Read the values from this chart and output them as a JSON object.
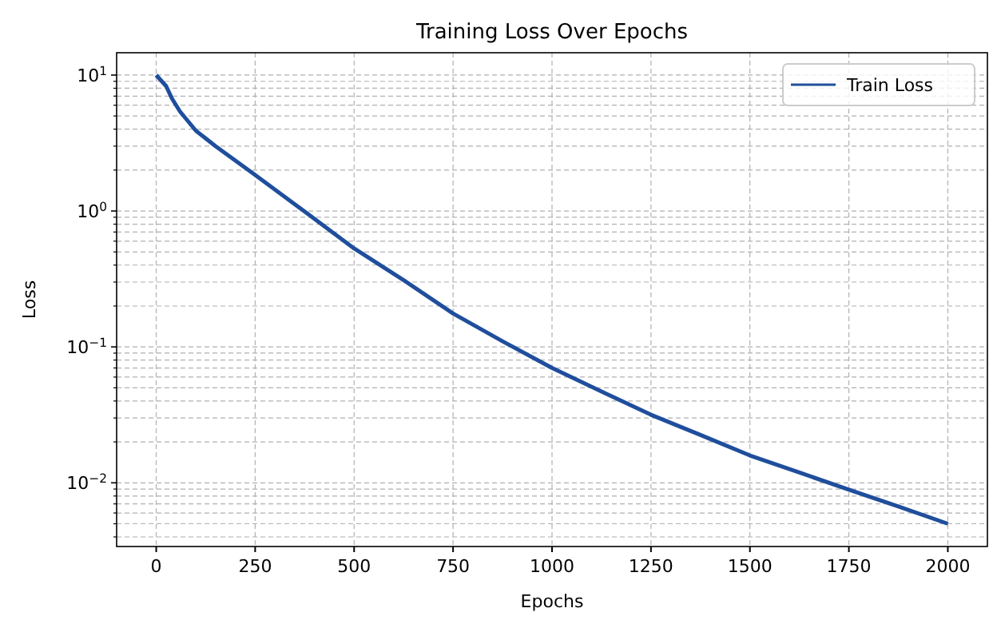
{
  "chart_data": {
    "type": "line",
    "title": "Training Loss Over Epochs",
    "xlabel": "Epochs",
    "ylabel": "Loss",
    "log": "y",
    "grid": true,
    "legend": "top right",
    "line_style": "solid",
    "xlim": [
      -100,
      2100
    ],
    "xticks": [
      0,
      250,
      500,
      750,
      1000,
      1250,
      1500,
      1750,
      2000
    ],
    "ylim": [
      0.0034,
      14.6
    ],
    "yticks": [
      {
        "value": 0.004,
        "label": null
      },
      {
        "value": 0.005,
        "label": null
      },
      {
        "value": 0.006,
        "label": null
      },
      {
        "value": 0.007,
        "label": null
      },
      {
        "value": 0.008,
        "label": null
      },
      {
        "value": 0.009,
        "label": null
      },
      {
        "value": 0.01,
        "label": "10$^{−2}$"
      },
      {
        "value": 0.02,
        "label": null
      },
      {
        "value": 0.03,
        "label": null
      },
      {
        "value": 0.04,
        "label": null
      },
      {
        "value": 0.05,
        "label": null
      },
      {
        "value": 0.06,
        "label": null
      },
      {
        "value": 0.07,
        "label": null
      },
      {
        "value": 0.08,
        "label": null
      },
      {
        "value": 0.09,
        "label": null
      },
      {
        "value": 0.1,
        "label": "10$^{−1}$"
      },
      {
        "value": 0.2,
        "label": null
      },
      {
        "value": 0.3,
        "label": null
      },
      {
        "value": 0.4,
        "label": null
      },
      {
        "value": 0.5,
        "label": null
      },
      {
        "value": 0.6,
        "label": null
      },
      {
        "value": 0.7,
        "label": null
      },
      {
        "value": 0.8,
        "label": null
      },
      {
        "value": 0.9,
        "label": null
      },
      {
        "value": 1,
        "label": "10$^{0}$"
      },
      {
        "value": 2,
        "label": null
      },
      {
        "value": 3,
        "label": null
      },
      {
        "value": 4,
        "label": null
      },
      {
        "value": 5,
        "label": null
      },
      {
        "value": 6,
        "label": null
      },
      {
        "value": 7,
        "label": null
      },
      {
        "value": 8,
        "label": null
      },
      {
        "value": 9,
        "label": null
      },
      {
        "value": 10,
        "label": "10$^{1}$"
      }
    ],
    "x": [
      0,
      25,
      40,
      60,
      100,
      150,
      250,
      375,
      500,
      625,
      750,
      875,
      1000,
      1125,
      1250,
      1375,
      1500,
      1625,
      1750,
      1875,
      2000
    ],
    "series": [
      {
        "name": "Train Loss",
        "color": "#1f4e9c",
        "values": [
          10,
          8.3,
          6.7,
          5.4,
          3.9,
          3.0,
          1.84,
          0.99,
          0.53,
          0.31,
          0.176,
          0.11,
          0.07,
          0.047,
          0.0317,
          0.0225,
          0.0159,
          0.0119,
          0.0089,
          0.0067,
          0.005
        ]
      }
    ]
  }
}
